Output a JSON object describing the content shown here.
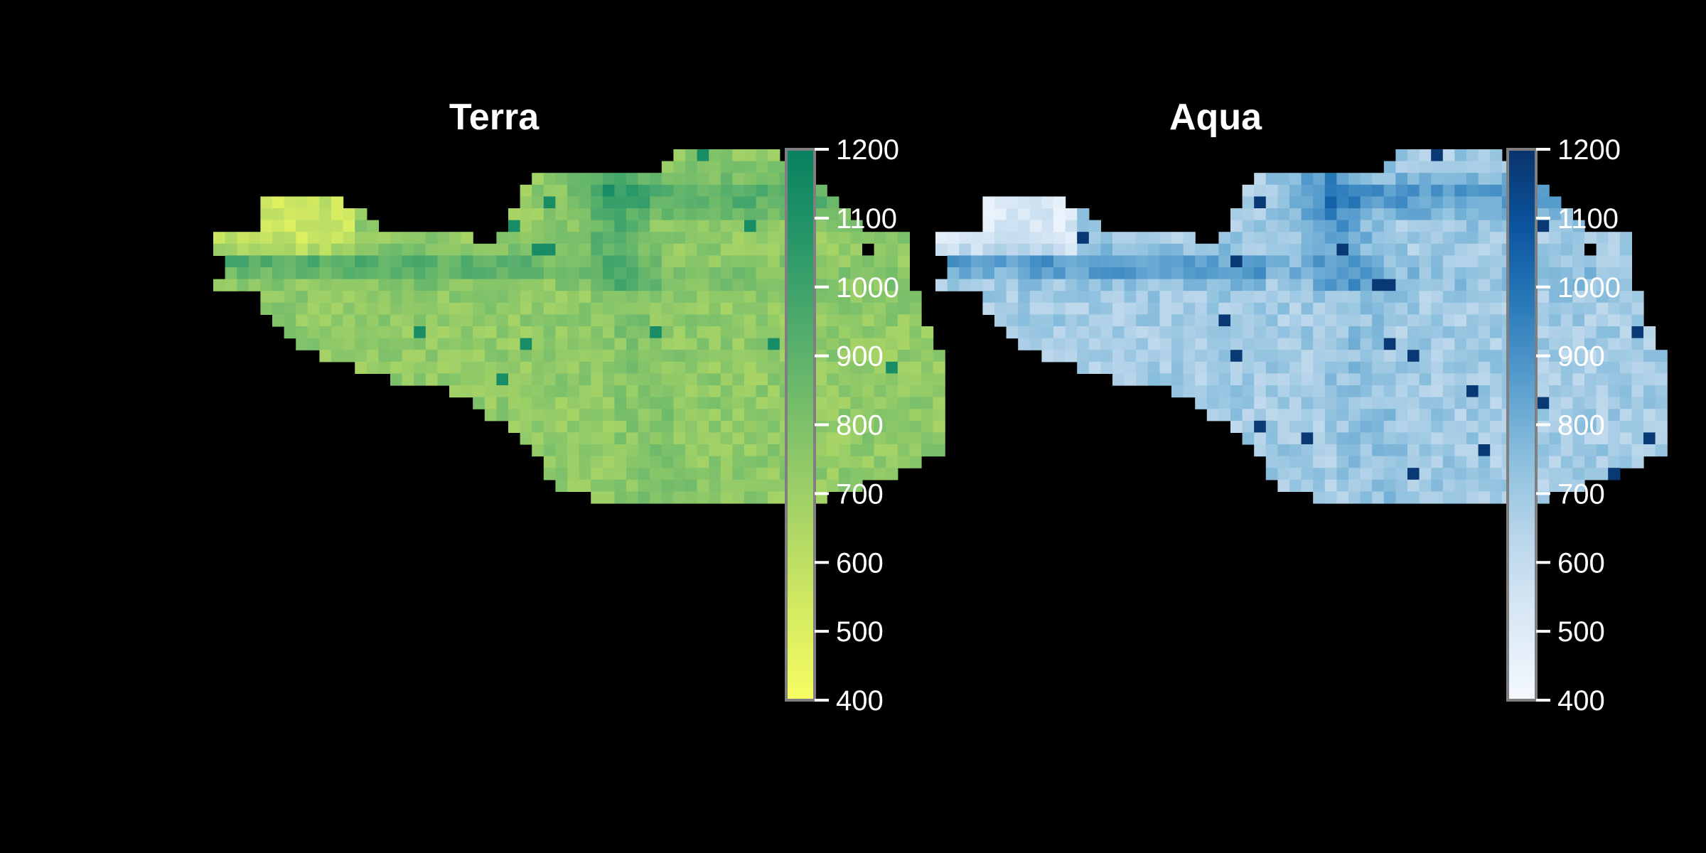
{
  "colors": {
    "background": "#000000",
    "text": "#ffffff",
    "colorbar_frame": "#7f7f7f",
    "missing": "#000000"
  },
  "chart_data": [
    {
      "type": "heatmap",
      "title": "Terra",
      "colormap": "YlGn",
      "colormap_stops": [
        "#f7fd62",
        "#d3ea61",
        "#a8d466",
        "#7ec16a",
        "#52ad6c",
        "#279769",
        "#08805f"
      ],
      "vmin": 400,
      "vmax": 1200,
      "colorbar_ticks": [
        1200,
        1100,
        1000,
        900,
        800,
        700,
        600,
        500,
        400
      ],
      "colorbar_tick_labels": [
        "1200",
        "1100",
        "1000",
        "900",
        "800",
        "700",
        "600",
        "500",
        "400"
      ],
      "typical_value": 740,
      "value_range": [
        460,
        1130
      ],
      "grid": false,
      "legend": "colorbar-right"
    },
    {
      "type": "heatmap",
      "title": "Aqua",
      "colormap": "Blues",
      "colormap_stops": [
        "#f4f9fe",
        "#dbe9f6",
        "#bcd7eb",
        "#8fc1de",
        "#5a9fce",
        "#2b7bba",
        "#0b559f",
        "#09336b"
      ],
      "vmin": 400,
      "vmax": 1200,
      "colorbar_ticks": [
        1200,
        1100,
        1000,
        900,
        800,
        700,
        600,
        500,
        400
      ],
      "colorbar_tick_labels": [
        "1200",
        "1100",
        "1000",
        "900",
        "800",
        "700",
        "600",
        "500",
        "400"
      ],
      "typical_value": 690,
      "value_range": [
        430,
        1180
      ],
      "grid": false,
      "legend": "colorbar-right"
    }
  ]
}
